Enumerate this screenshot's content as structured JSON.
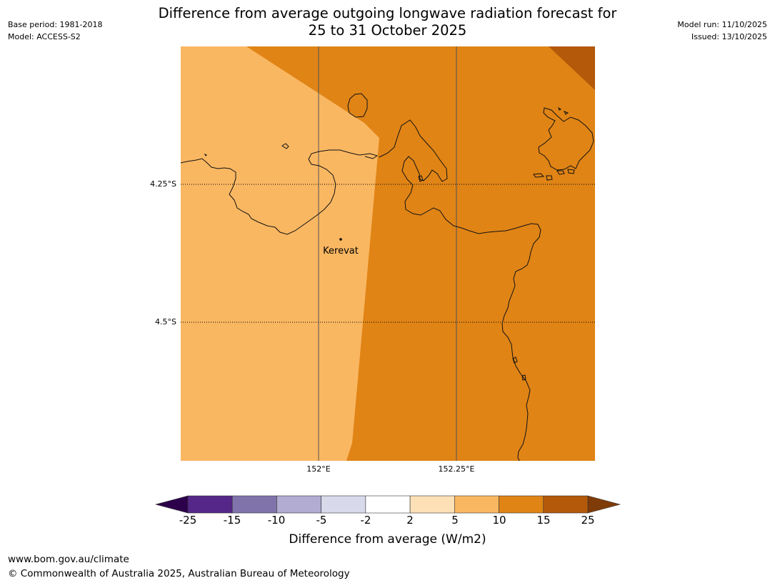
{
  "header": {
    "base_period": "Base period: 1981-2018",
    "model": "Model: ACCESS-S2",
    "title_line1": "Difference from average outgoing longwave radiation forecast for",
    "title_line2": "25 to 31 October 2025",
    "model_run": "Model run: 11/10/2025",
    "issued": "Issued: 13/10/2025"
  },
  "map": {
    "lat_labels": [
      "4.25°S",
      "4.5°S"
    ],
    "lon_labels": [
      "152°E",
      "152.25°E"
    ],
    "place": "Kerevat",
    "fill_colors": {
      "5_to_10": "#fab762",
      "10_to_15": "#e08416",
      "15_to_25": "#b35909"
    }
  },
  "colorbar": {
    "ticks": [
      "-25",
      "-15",
      "-10",
      "-5",
      "-2",
      "2",
      "5",
      "10",
      "15",
      "25"
    ],
    "colors": [
      "#2d004b",
      "#542788",
      "#8073ac",
      "#b2abd2",
      "#d8daeb",
      "#ffffff",
      "#fee0b6",
      "#fab762",
      "#e08416",
      "#b35909",
      "#7f3b08"
    ],
    "title": "Difference from average (W/m2)"
  },
  "footer": {
    "url": "www.bom.gov.au/climate",
    "copyright": "© Commonwealth of Australia 2025, Australian Bureau of Meteorology"
  }
}
